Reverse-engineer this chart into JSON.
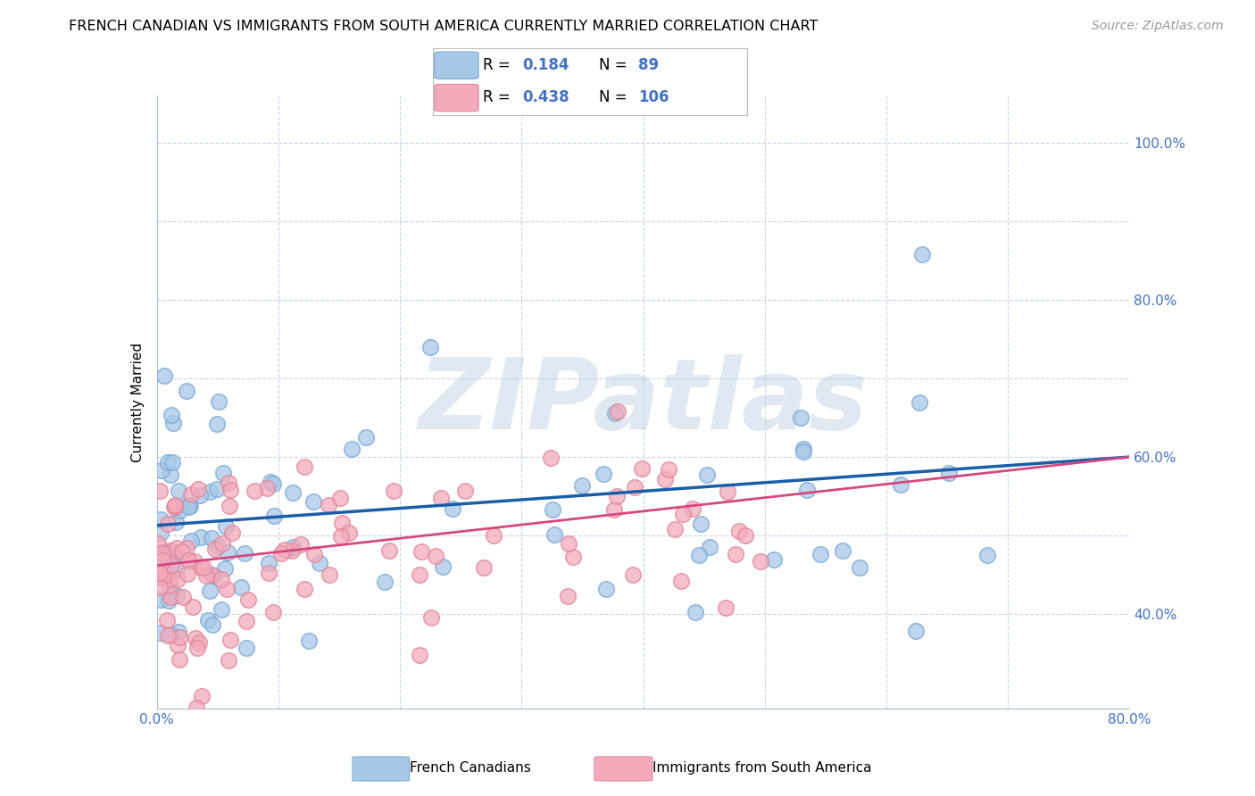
{
  "title": "FRENCH CANADIAN VS IMMIGRANTS FROM SOUTH AMERICA CURRENTLY MARRIED CORRELATION CHART",
  "source": "Source: ZipAtlas.com",
  "ylabel": "Currently Married",
  "xlim": [
    0.0,
    0.8
  ],
  "ylim": [
    0.28,
    1.06
  ],
  "ytick_positions": [
    0.4,
    0.5,
    0.6,
    0.7,
    0.8,
    0.9,
    1.0
  ],
  "ytick_labels": [
    "40.0%",
    "",
    "60.0%",
    "",
    "80.0%",
    "",
    "100.0%"
  ],
  "xtick_positions": [
    0.0,
    0.1,
    0.2,
    0.3,
    0.4,
    0.5,
    0.6,
    0.7,
    0.8
  ],
  "xtick_labels": [
    "0.0%",
    "",
    "",
    "",
    "",
    "",
    "",
    "",
    "80.0%"
  ],
  "watermark": "ZIPatlas",
  "blue_fill": "#A8C8E8",
  "blue_edge": "#7AAAD4",
  "pink_fill": "#F4AABB",
  "pink_edge": "#E08898",
  "blue_line_color": "#1A5EA8",
  "pink_line_color": "#D44880",
  "tick_color": "#4472C4",
  "grid_color": "#C8D4E8",
  "R_blue": 0.184,
  "N_blue": 89,
  "R_pink": 0.438,
  "N_pink": 106,
  "legend_label_blue": "French Canadians",
  "legend_label_pink": "Immigrants from South America",
  "blue_trend": [
    0.0,
    0.8,
    0.513,
    0.6
  ],
  "pink_trend": [
    0.0,
    0.8,
    0.462,
    0.6
  ],
  "seed_blue": 42,
  "seed_pink": 77
}
